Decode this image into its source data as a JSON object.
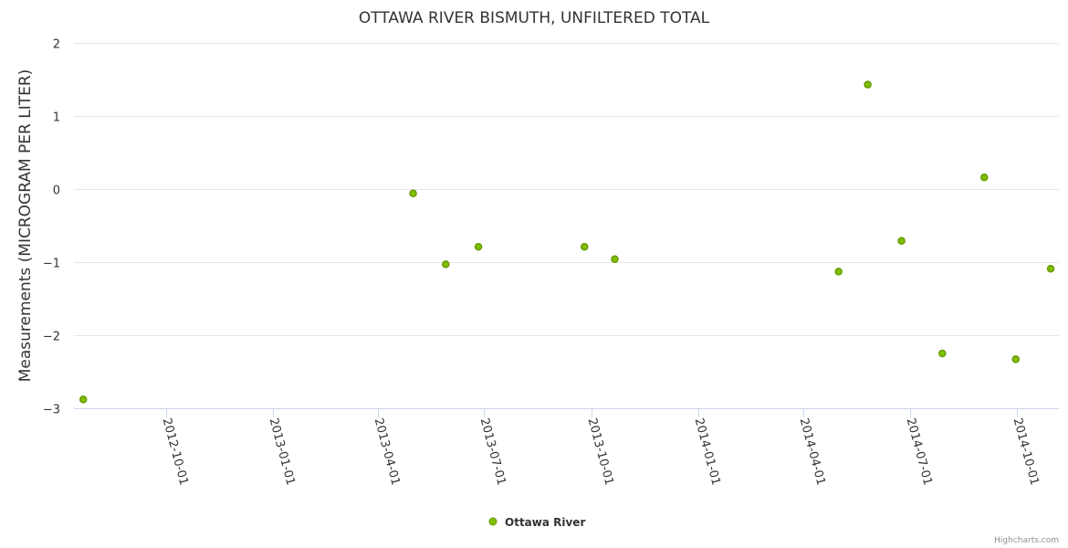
{
  "chart_data": {
    "type": "scatter",
    "title": "OTTAWA RIVER BISMUTH, UNFILTERED TOTAL",
    "xlabel": "",
    "ylabel": "Measurements (MICROGRAM PER LITER)",
    "xlim": [
      "2012-07-14",
      "2014-11-06"
    ],
    "ylim": [
      -3,
      2
    ],
    "yticks": [
      2,
      1,
      0,
      -1,
      -2,
      -3
    ],
    "ytick_labels": [
      "2",
      "1",
      "0",
      "−1",
      "−2",
      "−3"
    ],
    "xticks": [
      "2012-10-01",
      "2013-01-01",
      "2013-04-01",
      "2013-07-01",
      "2013-10-01",
      "2014-01-01",
      "2014-04-01",
      "2014-07-01",
      "2014-10-01"
    ],
    "grid": true,
    "legend_position": "bottom-center",
    "series": [
      {
        "name": "Ottawa River",
        "color": "#7cb5ec",
        "marker_color": "#669900",
        "marker_fill": "#80c000",
        "points": [
          {
            "x": "2012-07-22",
            "y": -2.88
          },
          {
            "x": "2013-05-01",
            "y": -0.06
          },
          {
            "x": "2013-05-29",
            "y": -1.03
          },
          {
            "x": "2013-06-26",
            "y": -0.79
          },
          {
            "x": "2013-09-25",
            "y": -0.79
          },
          {
            "x": "2013-10-21",
            "y": -0.96
          },
          {
            "x": "2014-05-01",
            "y": -1.13
          },
          {
            "x": "2014-05-26",
            "y": 1.43
          },
          {
            "x": "2014-06-24",
            "y": -0.71
          },
          {
            "x": "2014-07-29",
            "y": -2.25
          },
          {
            "x": "2014-09-03",
            "y": 0.16
          },
          {
            "x": "2014-09-30",
            "y": -2.33
          },
          {
            "x": "2014-10-30",
            "y": -1.09
          }
        ]
      }
    ]
  },
  "credits": "Highcharts.com"
}
